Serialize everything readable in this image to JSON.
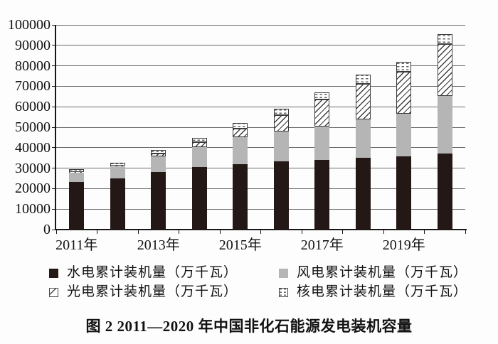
{
  "figure": {
    "caption": "图 2  2011—2020 年中国非化石能源发电装机容量"
  },
  "chart_data": {
    "type": "bar",
    "stacked": true,
    "title": "图 2 2011—2020 年中国非化石能源发电装机容量",
    "categories": [
      "2011年",
      "2012年",
      "2013年",
      "2014年",
      "2015年",
      "2016年",
      "2017年",
      "2018年",
      "2019年",
      "2020年"
    ],
    "x_axis": {
      "shown_tick_labels": [
        "2011年",
        "2013年",
        "2015年",
        "2017年",
        "2019年"
      ],
      "label_category_indices": [
        0,
        2,
        4,
        6,
        8
      ]
    },
    "y_axis": {
      "min": 0,
      "max": 100000,
      "step": 10000,
      "tick_labels": [
        "0",
        "10000",
        "20000",
        "30000",
        "40000",
        "50000",
        "60000",
        "70000",
        "80000",
        "90000",
        "100000"
      ]
    },
    "grid": true,
    "legend_position": "bottom",
    "series": [
      {
        "key": "hydro",
        "name": "水电累计装机量（万千瓦）",
        "style": "solid-black",
        "values": [
          23298,
          24947,
          28044,
          30486,
          31954,
          33211,
          34119,
          35226,
          35640,
          37016
        ]
      },
      {
        "key": "wind",
        "name": "风电累计装机量（万千瓦）",
        "style": "solid-gray",
        "values": [
          4623,
          6083,
          7652,
          9657,
          13075,
          14864,
          16367,
          18426,
          21005,
          28153
        ]
      },
      {
        "key": "solar",
        "name": "光电累计装机量（万千瓦）",
        "style": "diagonal-hatch",
        "values": [
          222,
          341,
          1589,
          2486,
          4318,
          7742,
          13025,
          17446,
          20468,
          25343
        ]
      },
      {
        "key": "nuclear",
        "name": "核电累计装机量（万千瓦）",
        "style": "dash-dots",
        "values": [
          1257,
          1257,
          1466,
          2008,
          2717,
          3364,
          3582,
          4466,
          4874,
          4989
        ]
      }
    ],
    "stacked_totals": [
      29400,
      32628,
      38751,
      44637,
      52064,
      59181,
      67093,
      75564,
      81987,
      95501
    ]
  },
  "colors": {
    "hydro": "#231815",
    "wind": "#b5b5b5",
    "pattern_line": "#3c3c3c",
    "grid": "#6a6a6a",
    "axis": "#161616",
    "text": "#121212",
    "background": "#fdfdfd"
  }
}
